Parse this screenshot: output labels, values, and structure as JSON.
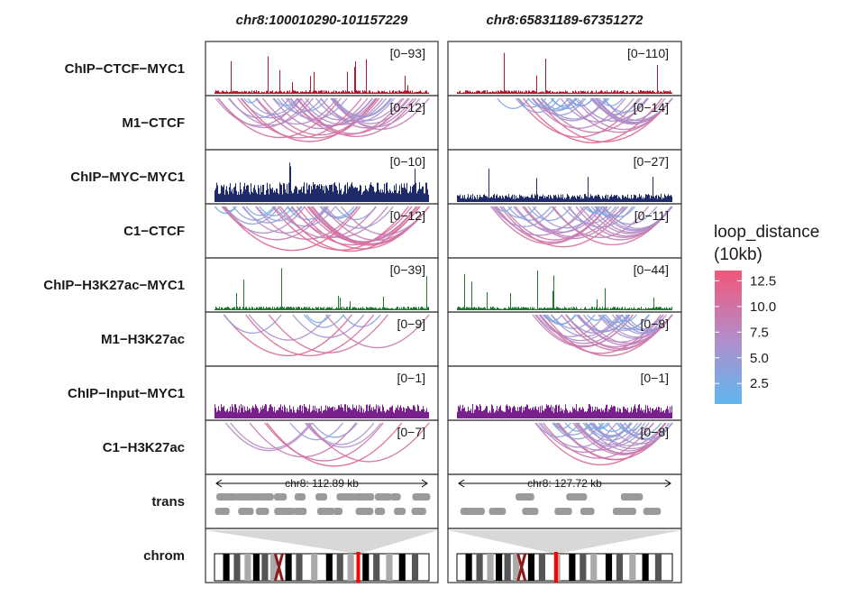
{
  "chart_data": {
    "type": "genome_tracks",
    "columns": [
      {
        "region": "chr8:100010290-101157229",
        "scale_label": "chr8: 112.89 kb",
        "ideogram_marker_fraction": 0.67
      },
      {
        "region": "chr8:65831189-67351272",
        "scale_label": "chr8: 127.72 kb",
        "ideogram_marker_fraction": 0.46
      }
    ],
    "tracks": [
      {
        "label": "ChIP−CTCF−MYC1",
        "kind": "signal",
        "color": "#b2182b",
        "ranges": [
          "[0−93]",
          "[0−110]"
        ]
      },
      {
        "label": "M1−CTCF",
        "kind": "loops",
        "ranges": [
          "[0−12]",
          "[0−14]"
        ]
      },
      {
        "label": "ChIP−MYC−MYC1",
        "kind": "signal",
        "color": "#1f2a6b",
        "ranges": [
          "[0−10]",
          "[0−27]"
        ]
      },
      {
        "label": "C1−CTCF",
        "kind": "loops",
        "ranges": [
          "[0−12]",
          "[0−11]"
        ]
      },
      {
        "label": "ChIP−H3K27ac−MYC1",
        "kind": "signal",
        "color": "#1b7a2e",
        "ranges": [
          "[0−39]",
          "[0−44]"
        ]
      },
      {
        "label": "M1−H3K27ac",
        "kind": "loops",
        "ranges": [
          "[0−9]",
          "[0−8]"
        ]
      },
      {
        "label": "ChIP−Input−MYC1",
        "kind": "signal",
        "color": "#7a1f8e",
        "ranges": [
          "[0−1]",
          "[0−1]"
        ]
      },
      {
        "label": "C1−H3K27ac",
        "kind": "loops",
        "ranges": [
          "[0−7]",
          "[0−8]"
        ]
      },
      {
        "label": "trans",
        "kind": "transcripts",
        "ranges": [
          "",
          ""
        ]
      },
      {
        "label": "chrom",
        "kind": "ideogram",
        "ranges": [
          "",
          ""
        ]
      }
    ],
    "legend": {
      "title_line1": "loop_distance",
      "title_line2": "(10kb)",
      "ticks": [
        "12.5",
        "10.0",
        "7.5",
        "5.0",
        "2.5"
      ],
      "tick_values": [
        12.5,
        10.0,
        7.5,
        5.0,
        2.5
      ],
      "range": [
        0.5,
        13.5
      ],
      "color_low": "#5fb7f0",
      "color_high": "#f2557a",
      "placement": "right"
    }
  }
}
